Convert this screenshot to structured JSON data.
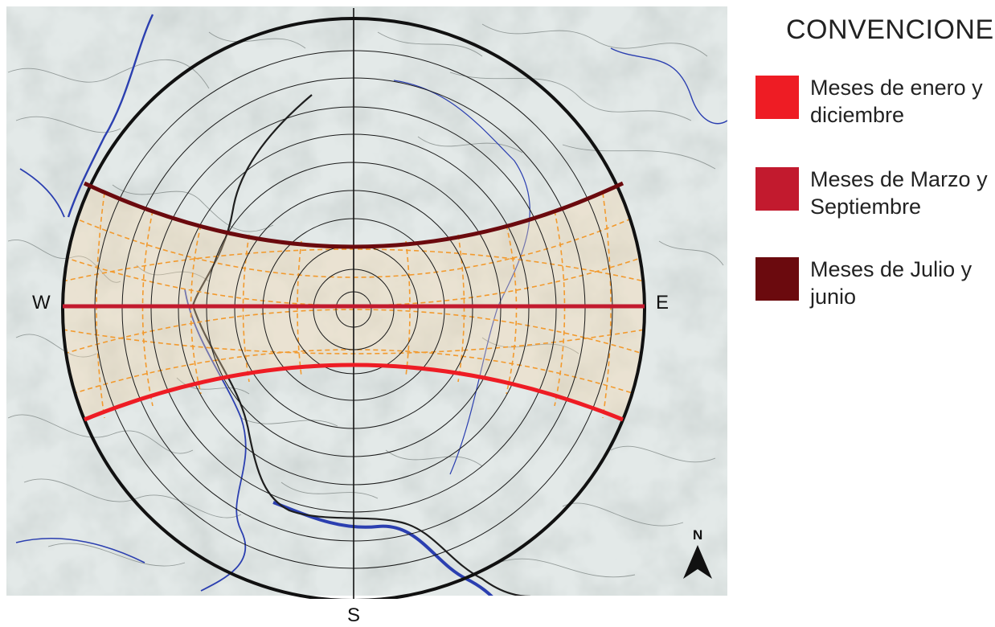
{
  "legend": {
    "title": "CONVENCIONES",
    "items": [
      {
        "label_line1": "Meses de enero y",
        "label_line2": "diciembre",
        "color": "#ee1c24"
      },
      {
        "label_line1": "Meses de Marzo y",
        "label_line2": "Septiembre",
        "color": "#c21a2e"
      },
      {
        "label_line1": "Meses de  Julio y",
        "label_line2": "junio",
        "color": "#6b0a0e"
      }
    ]
  },
  "directions": {
    "west": "W",
    "east": "E",
    "south": "S",
    "north": "N"
  },
  "colors": {
    "map_background": "#dfe5e4",
    "river": "#2b3fb0",
    "contour": "#6f7775",
    "grid_lines": "#1a1a1a",
    "sun_path_fill": "#f2b46a",
    "sun_path_dashes": "#f29a2e"
  }
}
